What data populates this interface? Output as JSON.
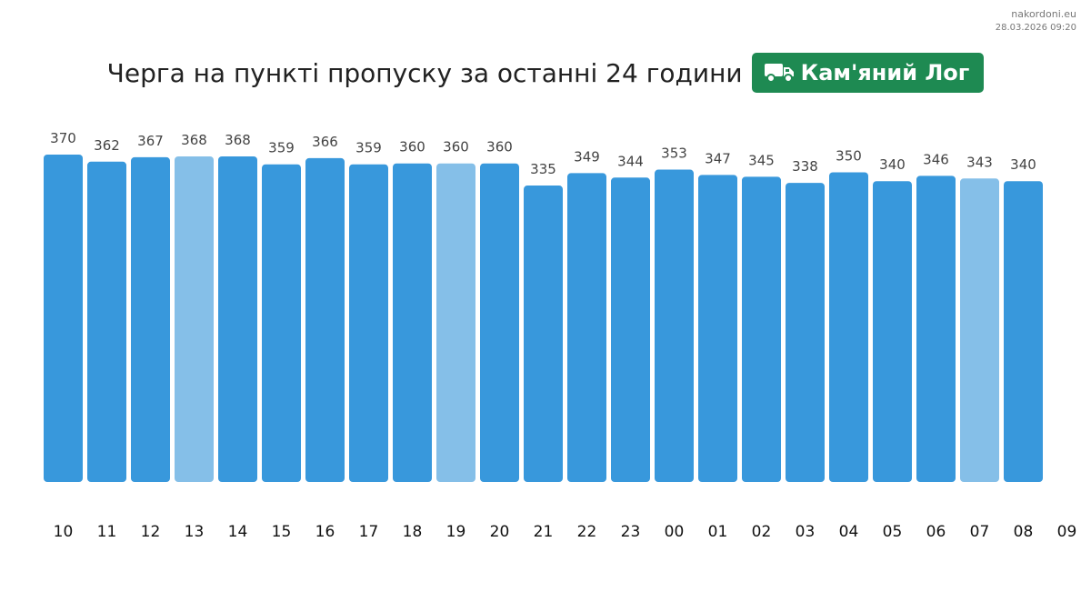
{
  "brand": {
    "site": "nakordoni.eu",
    "timestamp": "28.03.2026 09:20"
  },
  "header": {
    "title": "Черга на пункті пропуску за останні 24 години",
    "place": "Кам'яний Лог",
    "place_icon": "truck-icon",
    "badge_color": "#1e8a52"
  },
  "colors": {
    "bar": "#3898dc",
    "bar_highlight": "#85bfe8"
  },
  "chart_data": {
    "type": "bar",
    "categories": [
      "10",
      "11",
      "12",
      "13",
      "14",
      "15",
      "16",
      "17",
      "18",
      "19",
      "20",
      "21",
      "22",
      "23",
      "00",
      "01",
      "02",
      "03",
      "04",
      "05",
      "06",
      "07",
      "08"
    ],
    "extra_tick": "09",
    "values": [
      370,
      362,
      367,
      368,
      368,
      359,
      366,
      359,
      360,
      360,
      360,
      335,
      349,
      344,
      353,
      347,
      345,
      338,
      350,
      340,
      346,
      343,
      340
    ],
    "highlighted": [
      3,
      9,
      21
    ],
    "ylim": [
      0,
      370
    ],
    "title": "Черга на пункті пропуску за останні 24 години",
    "xlabel": "",
    "ylabel": "",
    "grid": false,
    "data_labels": true
  }
}
